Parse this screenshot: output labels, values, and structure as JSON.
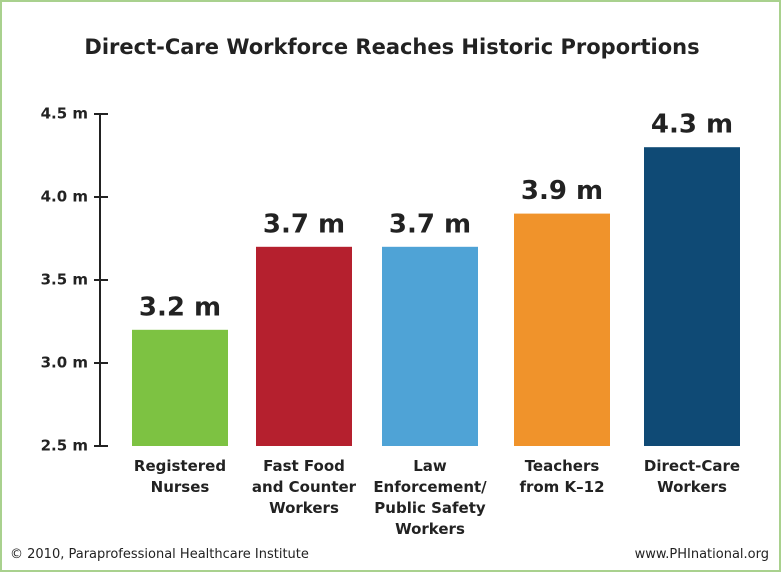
{
  "chart_data": {
    "type": "bar",
    "title": "Direct-Care Workforce Reaches Historic Proportions",
    "categories": [
      "Registered\nNurses",
      "Fast Food\nand Counter\nWorkers",
      "Law\nEnforcement/\nPublic Safety\nWorkers",
      "Teachers\nfrom K–12",
      "Direct-Care\nWorkers"
    ],
    "values": [
      3.2,
      3.7,
      3.7,
      3.9,
      4.3
    ],
    "value_labels": [
      "3.2 m",
      "3.7 m",
      "3.7 m",
      "3.9 m",
      "4.3 m"
    ],
    "colors": [
      "#7dc242",
      "#b5202e",
      "#4fa3d6",
      "#f0932b",
      "#0f4a75"
    ],
    "ylim": [
      2.5,
      4.5
    ],
    "yticks": [
      {
        "value": 2.5,
        "label": "2.5 m"
      },
      {
        "value": 3.0,
        "label": "3.0 m"
      },
      {
        "value": 3.5,
        "label": "3.5 m"
      },
      {
        "value": 4.0,
        "label": "4.0 m"
      },
      {
        "value": 4.5,
        "label": "4.5 m"
      }
    ],
    "grid": false,
    "source": "© 2010, Paraprofessional Healthcare Institute",
    "website": "www.PHInational.org"
  }
}
